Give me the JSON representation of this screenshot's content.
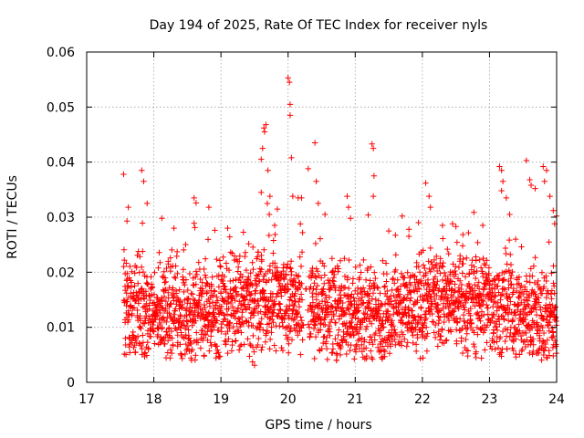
{
  "chart_data": {
    "type": "scatter",
    "title": "Day 194 of 2025, Rate Of TEC Index for receiver nyls",
    "xlabel": "GPS time / hours",
    "ylabel": "ROTI / TECUs",
    "xlim": [
      17,
      24
    ],
    "ylim": [
      0,
      0.06
    ],
    "x_ticks": [
      17,
      18,
      19,
      20,
      21,
      22,
      23,
      24
    ],
    "x_tick_labels": [
      "17",
      "18",
      "19",
      "20",
      "21",
      "22",
      "23",
      "24"
    ],
    "y_ticks": [
      0,
      0.01,
      0.02,
      0.03,
      0.04,
      0.05,
      0.06
    ],
    "y_tick_labels": [
      "0",
      "0.01",
      "0.02",
      "0.03",
      "0.04",
      "0.05",
      "0.06"
    ],
    "grid": true,
    "marker": "+",
    "marker_color": "#ff0000",
    "series": [
      {
        "name": "ROTI",
        "x_range": [
          17.55,
          24.0
        ],
        "typical_range": [
          0.005,
          0.025
        ],
        "points": [
          [
            17.55,
            0.0378
          ],
          [
            17.62,
            0.0318
          ],
          [
            17.6,
            0.0293
          ],
          [
            17.58,
            0.0068
          ],
          [
            17.82,
            0.0385
          ],
          [
            17.85,
            0.0365
          ],
          [
            17.9,
            0.0325
          ],
          [
            18.12,
            0.0298
          ],
          [
            18.3,
            0.028
          ],
          [
            18.4,
            0.0052
          ],
          [
            18.6,
            0.0335
          ],
          [
            18.63,
            0.0326
          ],
          [
            18.6,
            0.0289
          ],
          [
            18.75,
            0.0049
          ],
          [
            18.82,
            0.0318
          ],
          [
            19.1,
            0.028
          ],
          [
            19.3,
            0.0068
          ],
          [
            19.47,
            0.0037
          ],
          [
            19.5,
            0.0031
          ],
          [
            19.55,
            0.0068
          ],
          [
            19.6,
            0.0345
          ],
          [
            19.6,
            0.0405
          ],
          [
            19.62,
            0.0425
          ],
          [
            19.64,
            0.0462
          ],
          [
            19.67,
            0.0468
          ],
          [
            19.65,
            0.0455
          ],
          [
            19.7,
            0.0385
          ],
          [
            19.73,
            0.0338
          ],
          [
            19.72,
            0.0305
          ],
          [
            19.8,
            0.0285
          ],
          [
            20.0,
            0.0553
          ],
          [
            20.02,
            0.0545
          ],
          [
            20.03,
            0.0505
          ],
          [
            20.03,
            0.0485
          ],
          [
            20.05,
            0.0408
          ],
          [
            20.07,
            0.0338
          ],
          [
            20.15,
            0.0335
          ],
          [
            20.2,
            0.0335
          ],
          [
            20.3,
            0.0388
          ],
          [
            20.4,
            0.0435
          ],
          [
            20.42,
            0.0365
          ],
          [
            20.45,
            0.0325
          ],
          [
            20.55,
            0.0305
          ],
          [
            20.88,
            0.0338
          ],
          [
            20.9,
            0.0318
          ],
          [
            20.93,
            0.0298
          ],
          [
            21.25,
            0.0433
          ],
          [
            21.27,
            0.0425
          ],
          [
            21.28,
            0.0375
          ],
          [
            21.27,
            0.0338
          ],
          [
            21.5,
            0.0275
          ],
          [
            21.7,
            0.0302
          ],
          [
            21.8,
            0.0278
          ],
          [
            22.05,
            0.0362
          ],
          [
            22.1,
            0.0338
          ],
          [
            22.12,
            0.0318
          ],
          [
            22.3,
            0.0285
          ],
          [
            22.45,
            0.0288
          ],
          [
            22.5,
            0.0283
          ],
          [
            22.6,
            0.0248
          ],
          [
            22.9,
            0.0285
          ],
          [
            22.6,
            0.0053
          ],
          [
            22.8,
            0.0045
          ],
          [
            22.88,
            0.0044
          ],
          [
            23.15,
            0.0392
          ],
          [
            23.18,
            0.0385
          ],
          [
            23.2,
            0.0365
          ],
          [
            23.18,
            0.0348
          ],
          [
            23.25,
            0.0335
          ],
          [
            23.3,
            0.0305
          ],
          [
            23.55,
            0.0403
          ],
          [
            23.6,
            0.0368
          ],
          [
            23.62,
            0.0358
          ],
          [
            23.68,
            0.0352
          ],
          [
            23.8,
            0.0392
          ],
          [
            23.85,
            0.0385
          ],
          [
            23.82,
            0.0365
          ],
          [
            23.9,
            0.0338
          ],
          [
            23.95,
            0.0312
          ],
          [
            23.97,
            0.0288
          ],
          [
            24.0,
            0.0302
          ],
          [
            23.7,
            0.0053
          ],
          [
            23.85,
            0.0045
          ],
          [
            23.95,
            0.0048
          ]
        ]
      }
    ]
  }
}
